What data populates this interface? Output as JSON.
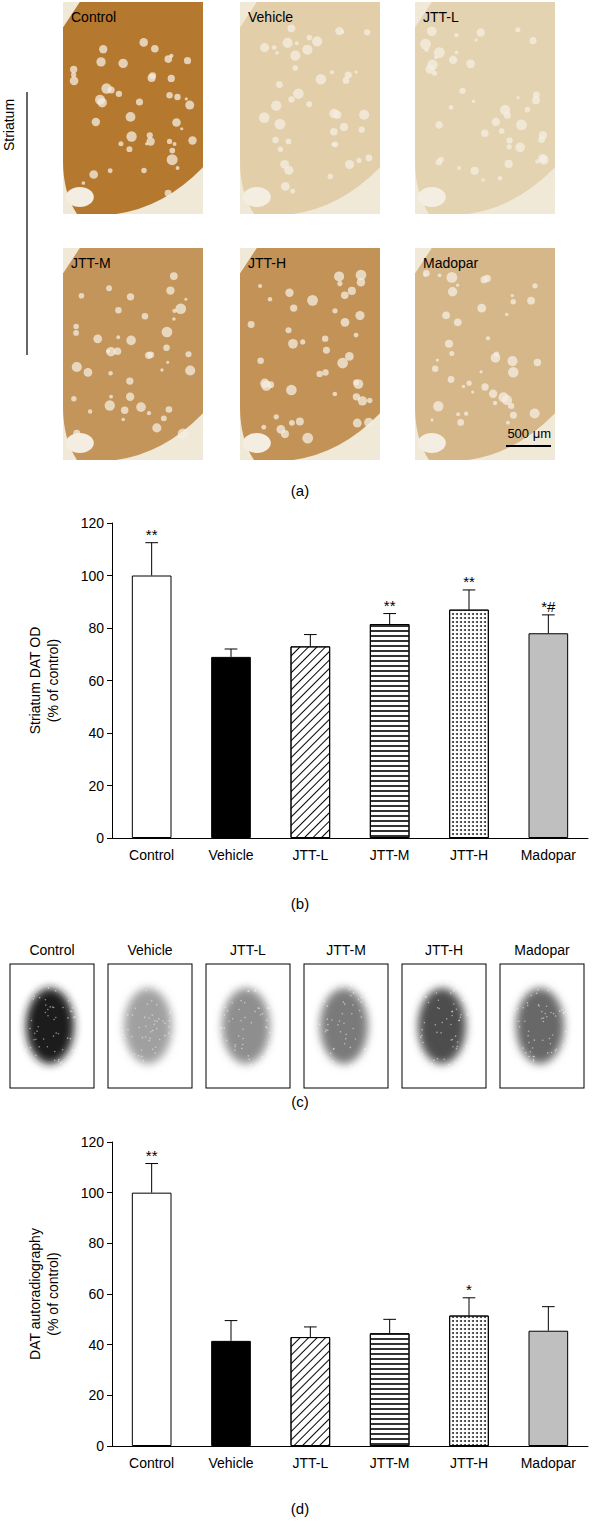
{
  "chart_data": [
    {
      "type": "bar",
      "panel": "(b)",
      "y_label": [
        "Striatum DAT OD",
        "(% of control)"
      ],
      "categories": [
        "Control",
        "Vehicle",
        "JTT-L",
        "JTT-M",
        "JTT-H",
        "Madopar"
      ],
      "values": [
        100,
        69,
        73,
        81.5,
        87,
        78
      ],
      "errors": [
        12.5,
        3,
        4.5,
        4,
        7.5,
        7
      ],
      "annotations": [
        "**",
        null,
        null,
        "**",
        "**",
        "*#"
      ],
      "colors": [
        "#ffffff",
        "#000000",
        "#ffffff",
        "#ffffff",
        "#ffffff",
        "#bfbfbf"
      ],
      "ylim": [
        0,
        120
      ],
      "yticks": [
        0,
        20,
        40,
        60,
        80,
        100,
        120
      ],
      "grid": false
    },
    {
      "type": "bar",
      "panel": "(d)",
      "y_label": [
        "DAT autoradiography",
        "(% of control)"
      ],
      "categories": [
        "Control",
        "Vehicle",
        "JTT-L",
        "JTT-M",
        "JTT-H",
        "Madopar"
      ],
      "values": [
        100,
        41.5,
        43,
        44.5,
        51.5,
        45.5
      ],
      "errors": [
        11.5,
        8,
        4,
        5.5,
        7,
        9.5
      ],
      "annotations": [
        "**",
        null,
        null,
        null,
        "*",
        null
      ],
      "colors": [
        "#ffffff",
        "#000000",
        "#ffffff",
        "#ffffff",
        "#ffffff",
        "#bfbfbf"
      ],
      "ylim": [
        0,
        120
      ],
      "yticks": [
        0,
        20,
        40,
        60,
        80,
        100,
        120
      ],
      "grid": false
    }
  ],
  "image_panels": [
    {
      "panel": "(a)",
      "side_label": "Striatum",
      "scale_bar": "500 μm",
      "images": [
        {
          "title": "Control",
          "color": "#b5782f"
        },
        {
          "title": "Vehicle",
          "color": "#e2cfa9"
        },
        {
          "title": "JTT-L",
          "color": "#e4d3b1"
        },
        {
          "title": "JTT-M",
          "color": "#c4955a"
        },
        {
          "title": "JTT-H",
          "color": "#c29257"
        },
        {
          "title": "Madopar",
          "color": "#d5b78a"
        }
      ]
    },
    {
      "panel": "(c)",
      "images": [
        {
          "title": "Control",
          "color": "#1e1e1e"
        },
        {
          "title": "Vehicle",
          "color": "#a0a0a0"
        },
        {
          "title": "JTT-L",
          "color": "#8e8e8e"
        },
        {
          "title": "JTT-M",
          "color": "#7a7a7a"
        },
        {
          "title": "JTT-H",
          "color": "#4e4e4e"
        },
        {
          "title": "Madopar",
          "color": "#686868"
        }
      ]
    }
  ]
}
